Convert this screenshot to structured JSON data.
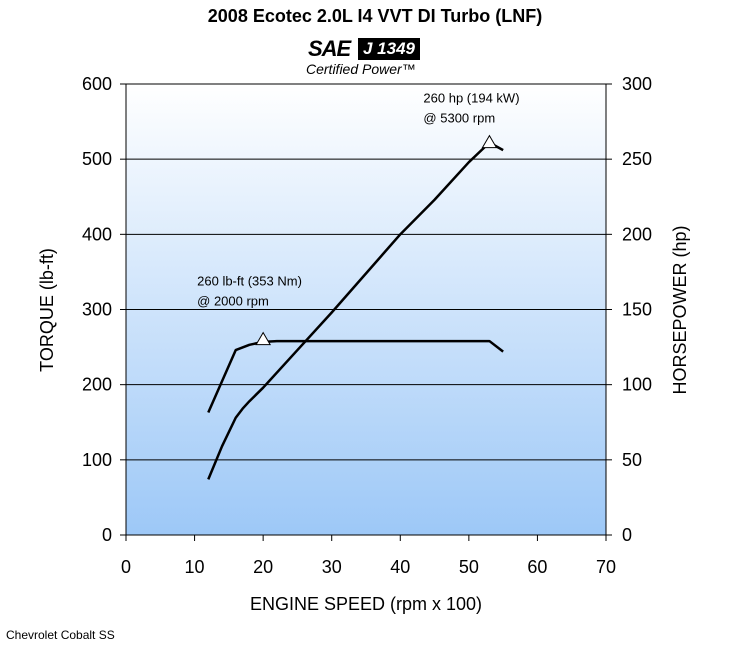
{
  "chart_data": {
    "type": "line",
    "title": "2008 Ecotec 2.0L I4 VVT DI Turbo (LNF)",
    "xlabel": "ENGINE SPEED (rpm x 100)",
    "ylabel": "TORQUE (lb-ft)",
    "y2label": "HORSEPOWER (hp)",
    "xlim": [
      0,
      70
    ],
    "ylim": [
      0,
      600
    ],
    "y2lim": [
      0,
      300
    ],
    "xticks": [
      "0",
      "10",
      "20",
      "30",
      "40",
      "50",
      "60",
      "70"
    ],
    "yticks": [
      "0",
      "100",
      "200",
      "300",
      "400",
      "500",
      "600"
    ],
    "y2ticks": [
      "0",
      "50",
      "100",
      "150",
      "200",
      "250",
      "300"
    ],
    "grid": "horizontal",
    "series": [
      {
        "name": "torque",
        "axis": "left",
        "x": [
          12,
          16,
          18,
          20,
          22,
          30,
          40,
          50,
          53,
          55
        ],
        "y": [
          163,
          246,
          253,
          257,
          258,
          258,
          258,
          258,
          258,
          244
        ]
      },
      {
        "name": "horsepower",
        "axis": "right",
        "x": [
          12,
          14,
          16,
          17,
          18,
          20,
          25,
          30,
          40,
          45,
          50,
          53,
          55
        ],
        "y": [
          37,
          59,
          78,
          84,
          89,
          98,
          123,
          148,
          200,
          223,
          248,
          261,
          256
        ]
      }
    ],
    "annotations": [
      {
        "line1": "260 lb-ft (353 Nm)",
        "line2": "@ 2000 rpm",
        "x": 20,
        "y": 260,
        "axis": "left"
      },
      {
        "line1": "260 hp (194 kW)",
        "line2": "@ 5300 rpm",
        "x": 53,
        "y": 261,
        "axis": "right"
      }
    ]
  },
  "logo": {
    "sae": "SAE",
    "standard": "J 1349",
    "certified": "Certified  Power™"
  },
  "footnote": "Chevrolet Cobalt SS"
}
